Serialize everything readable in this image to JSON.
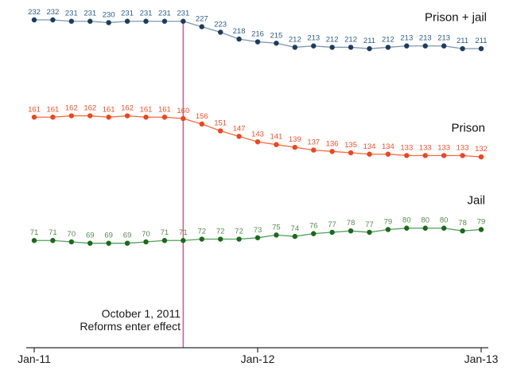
{
  "chart_data": {
    "type": "line",
    "title": "",
    "xlabel": "",
    "ylabel": "",
    "x": [
      "Jan-11",
      "Feb-11",
      "Mar-11",
      "Apr-11",
      "May-11",
      "Jun-11",
      "Jul-11",
      "Aug-11",
      "Sep-11",
      "Oct-11",
      "Nov-11",
      "Dec-11",
      "Jan-12",
      "Feb-12",
      "Mar-12",
      "Apr-12",
      "May-12",
      "Jun-12",
      "Jul-12",
      "Aug-12",
      "Sep-12",
      "Oct-12",
      "Nov-12",
      "Dec-12",
      "Jan-13"
    ],
    "x_tick_labels": [
      "Jan-11",
      "Jan-12",
      "Jan-13"
    ],
    "x_tick_indices": [
      0,
      12,
      24
    ],
    "ylim": [
      60,
      240
    ],
    "grid": false,
    "legend_position": "labels-at-line-ends-right",
    "series": [
      {
        "name": "Prison + jail",
        "marker_color": "#1b3c61",
        "line_color": "#7e96ab",
        "label_color": "#2d5c87",
        "values": [
          232,
          232,
          231,
          231,
          230,
          231,
          231,
          231,
          231,
          227,
          223,
          218,
          216,
          215,
          212,
          213,
          212,
          212,
          211,
          212,
          213,
          213,
          213,
          211,
          211
        ]
      },
      {
        "name": "Prison",
        "marker_color": "#f1441c",
        "line_color": "#f46b42",
        "label_color": "#f2502a",
        "values": [
          161,
          161,
          162,
          162,
          161,
          162,
          161,
          161,
          160,
          156,
          151,
          147,
          143,
          141,
          139,
          137,
          136,
          135,
          134,
          134,
          133,
          133,
          133,
          133,
          132
        ]
      },
      {
        "name": "Jail",
        "marker_color": "#176b17",
        "line_color": "#559e5f",
        "label_color": "#568b4e",
        "values": [
          71,
          71,
          70,
          69,
          69,
          69,
          70,
          71,
          71,
          72,
          72,
          72,
          73,
          75,
          74,
          76,
          77,
          78,
          77,
          79,
          80,
          80,
          80,
          78,
          79
        ]
      }
    ],
    "annotation": {
      "line1": "October 1, 2011",
      "line2": "Reforms enter effect",
      "x_index": 8,
      "vline_color": "#d4577b"
    },
    "axis_color": "#2b2b2b"
  }
}
